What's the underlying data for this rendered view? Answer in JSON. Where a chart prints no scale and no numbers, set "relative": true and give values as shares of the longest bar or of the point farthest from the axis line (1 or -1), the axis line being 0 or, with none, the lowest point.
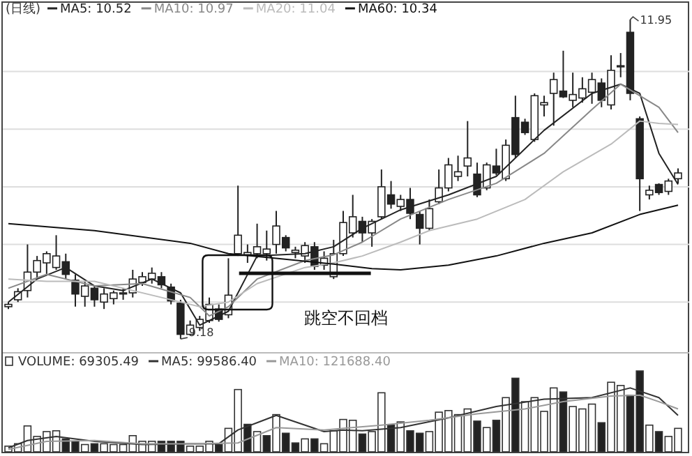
{
  "chart_data": [
    {
      "type": "candlestick",
      "title": "(日线)",
      "color": "#222222",
      "grid": "y",
      "legend": "top left",
      "categories": [
        null,
        null,
        null,
        null,
        null,
        null,
        null,
        null,
        null,
        null,
        null,
        null,
        null,
        null,
        null,
        null,
        null,
        null,
        null,
        null,
        null,
        null,
        null,
        null,
        null,
        null,
        null,
        null,
        null,
        null,
        null,
        null,
        null,
        null,
        null,
        null,
        null,
        null,
        null,
        null,
        null,
        null,
        null,
        null,
        null,
        null,
        null,
        null,
        null,
        null,
        null,
        null,
        null,
        null,
        null,
        null,
        null,
        null,
        null,
        null,
        null,
        null,
        null,
        null,
        null,
        null,
        null,
        null,
        null,
        null,
        null
      ],
      "ohlc": [
        [
          9.46,
          9.5,
          9.44,
          9.48
        ],
        [
          9.52,
          9.62,
          9.5,
          9.59
        ],
        [
          9.6,
          10.0,
          9.54,
          9.76
        ],
        [
          9.76,
          9.9,
          9.7,
          9.86
        ],
        [
          9.84,
          9.94,
          9.74,
          9.92
        ],
        [
          9.8,
          10.08,
          9.78,
          9.9
        ],
        [
          9.85,
          9.92,
          9.7,
          9.74
        ],
        [
          9.69,
          9.74,
          9.46,
          9.57
        ],
        [
          9.55,
          9.68,
          9.46,
          9.64
        ],
        [
          9.62,
          9.64,
          9.46,
          9.52
        ],
        [
          9.5,
          9.62,
          9.44,
          9.57
        ],
        [
          9.53,
          9.6,
          9.48,
          9.58
        ],
        [
          9.57,
          9.62,
          9.52,
          9.58
        ],
        [
          9.58,
          9.78,
          9.54,
          9.7
        ],
        [
          9.67,
          9.76,
          9.64,
          9.72
        ],
        [
          9.7,
          9.8,
          9.66,
          9.75
        ],
        [
          9.72,
          9.76,
          9.62,
          9.65
        ],
        [
          9.63,
          9.66,
          9.48,
          9.51
        ],
        [
          9.49,
          9.52,
          9.18,
          9.22
        ],
        [
          9.22,
          9.34,
          9.21,
          9.3
        ],
        [
          9.28,
          9.38,
          9.25,
          9.35
        ],
        [
          9.34,
          9.54,
          9.32,
          9.48
        ],
        [
          9.44,
          9.48,
          9.33,
          9.35
        ],
        [
          9.39,
          9.88,
          9.36,
          9.56
        ],
        [
          9.92,
          10.51,
          9.9,
          10.08
        ],
        [
          9.91,
          10.0,
          9.84,
          9.93
        ],
        [
          9.92,
          10.18,
          9.88,
          9.98
        ],
        [
          9.92,
          10.12,
          9.86,
          9.96
        ],
        [
          10.0,
          10.29,
          9.92,
          10.16
        ],
        [
          10.06,
          10.08,
          9.94,
          9.97
        ],
        [
          9.93,
          9.98,
          9.88,
          9.95
        ],
        [
          9.9,
          10.02,
          9.84,
          9.99
        ],
        [
          9.98,
          10.02,
          9.78,
          9.81
        ],
        [
          9.82,
          9.94,
          9.78,
          9.88
        ],
        [
          9.72,
          10.04,
          9.7,
          9.92
        ],
        [
          9.92,
          10.29,
          9.9,
          10.19
        ],
        [
          10.1,
          10.43,
          10.06,
          10.24
        ],
        [
          10.2,
          10.24,
          10.02,
          10.1
        ],
        [
          10.1,
          10.22,
          9.98,
          10.2
        ],
        [
          10.24,
          10.65,
          10.22,
          10.5
        ],
        [
          10.43,
          10.55,
          10.31,
          10.35
        ],
        [
          10.33,
          10.43,
          10.29,
          10.39
        ],
        [
          10.39,
          10.49,
          10.22,
          10.27
        ],
        [
          10.26,
          10.29,
          10.0,
          10.14
        ],
        [
          10.14,
          10.39,
          10.12,
          10.31
        ],
        [
          10.37,
          10.65,
          10.35,
          10.49
        ],
        [
          10.49,
          10.75,
          10.46,
          10.69
        ],
        [
          10.59,
          10.77,
          10.55,
          10.63
        ],
        [
          10.68,
          11.07,
          10.59,
          10.75
        ],
        [
          10.61,
          10.71,
          10.41,
          10.43
        ],
        [
          10.49,
          10.71,
          10.47,
          10.69
        ],
        [
          10.68,
          10.83,
          10.6,
          10.62
        ],
        [
          10.57,
          10.91,
          10.55,
          10.86
        ],
        [
          11.1,
          11.29,
          10.75,
          10.78
        ],
        [
          11.06,
          11.09,
          10.95,
          10.97
        ],
        [
          10.91,
          11.31,
          10.89,
          11.29
        ],
        [
          11.21,
          11.29,
          11.11,
          11.23
        ],
        [
          11.31,
          11.49,
          11.03,
          11.43
        ],
        [
          11.33,
          11.68,
          11.27,
          11.28
        ],
        [
          11.25,
          11.49,
          11.19,
          11.3
        ],
        [
          11.27,
          11.45,
          11.23,
          11.35
        ],
        [
          11.32,
          11.49,
          11.22,
          11.43
        ],
        [
          11.4,
          11.44,
          11.19,
          11.25
        ],
        [
          11.21,
          11.64,
          11.17,
          11.51
        ],
        [
          11.54,
          11.66,
          11.45,
          11.55
        ],
        [
          11.84,
          11.95,
          11.25,
          11.31
        ],
        [
          11.09,
          11.11,
          10.29,
          10.57
        ],
        [
          10.43,
          10.51,
          10.39,
          10.47
        ],
        [
          10.52,
          10.53,
          10.43,
          10.45
        ],
        [
          10.46,
          10.57,
          10.43,
          10.55
        ],
        [
          10.57,
          10.66,
          10.53,
          10.62
        ]
      ],
      "series": [
        {
          "name": "MA5: 10.52",
          "type": "line",
          "color": "#222222",
          "values": [
            9.5,
            null,
            null,
            9.7,
            null,
            null,
            9.8,
            null,
            null,
            9.64,
            null,
            null,
            9.6,
            null,
            null,
            9.7,
            null,
            null,
            9.58,
            null,
            9.3,
            null,
            null,
            9.42,
            null,
            null,
            9.9,
            null,
            null,
            null,
            null,
            9.92,
            null,
            null,
            9.98,
            null,
            null,
            10.14,
            null,
            null,
            null,
            10.3,
            null,
            null,
            null,
            null,
            10.43,
            null,
            null,
            null,
            null,
            10.59,
            null,
            null,
            null,
            null,
            10.99,
            null,
            null,
            null,
            null,
            11.31,
            null,
            null,
            11.39,
            null,
            11.31,
            null,
            10.79,
            null,
            10.52
          ]
        },
        {
          "name": "MA10: 10.97",
          "type": "line",
          "color": "#888888",
          "values": [
            9.62,
            null,
            null,
            null,
            9.74,
            null,
            null,
            null,
            null,
            9.64,
            null,
            null,
            null,
            null,
            9.66,
            null,
            null,
            null,
            null,
            9.54,
            null,
            9.38,
            null,
            9.46,
            null,
            null,
            9.7,
            null,
            null,
            null,
            null,
            9.86,
            null,
            null,
            9.91,
            null,
            null,
            10.02,
            null,
            null,
            null,
            10.22,
            null,
            null,
            null,
            null,
            10.39,
            null,
            null,
            null,
            null,
            10.53,
            null,
            null,
            null,
            null,
            10.79,
            null,
            null,
            null,
            null,
            11.17,
            null,
            null,
            11.39,
            null,
            null,
            null,
            11.19,
            null,
            10.97
          ]
        },
        {
          "name": "MA20: 11.04",
          "type": "line",
          "color": "#bbbbbb",
          "values": [
            9.7,
            null,
            null,
            null,
            9.68,
            null,
            null,
            null,
            null,
            9.68,
            null,
            null,
            null,
            null,
            null,
            null,
            9.54,
            null,
            null,
            null,
            9.46,
            null,
            null,
            9.5,
            null,
            null,
            9.66,
            null,
            null,
            null,
            null,
            9.8,
            null,
            null,
            9.84,
            null,
            null,
            9.9,
            null,
            null,
            null,
            10.02,
            null,
            null,
            10.12,
            null,
            null,
            null,
            null,
            10.22,
            null,
            null,
            null,
            null,
            10.39,
            null,
            null,
            null,
            10.63,
            null,
            null,
            null,
            null,
            10.87,
            null,
            null,
            11.07,
            null,
            11.05,
            null,
            11.04
          ]
        },
        {
          "name": "MA60: 10.34",
          "type": "line",
          "color": "#111111",
          "values": [
            10.18,
            null,
            null,
            null,
            null,
            null,
            null,
            null,
            null,
            10.12,
            null,
            null,
            null,
            null,
            null,
            null,
            null,
            null,
            null,
            10.01,
            null,
            null,
            null,
            9.92,
            null,
            null,
            null,
            null,
            9.88,
            null,
            null,
            null,
            null,
            null,
            9.83,
            null,
            null,
            null,
            9.79,
            null,
            null,
            9.78,
            null,
            null,
            null,
            null,
            9.82,
            null,
            null,
            null,
            null,
            9.9,
            null,
            null,
            null,
            null,
            10.01,
            null,
            null,
            null,
            null,
            10.1,
            null,
            null,
            null,
            null,
            10.26,
            null,
            null,
            null,
            10.34
          ]
        }
      ],
      "ylim": [
        9.06,
        12.12
      ],
      "yticks": [
        {
          "value": 9.5,
          "label": null
        },
        {
          "value": 10.0,
          "label": null
        },
        {
          "value": 10.5,
          "label": null
        },
        {
          "value": 11.0,
          "label": null
        },
        {
          "value": 11.5,
          "label": null
        }
      ],
      "annotations": [
        "11.95",
        "9.18",
        "跳空不回档"
      ]
    },
    {
      "type": "bar",
      "relative": true,
      "legend": "top left",
      "categories": [
        null,
        null,
        null,
        null,
        null,
        null,
        null,
        null,
        null,
        null,
        null,
        null,
        null,
        null,
        null,
        null,
        null,
        null,
        null,
        null,
        null,
        null,
        null,
        null,
        null,
        null,
        null,
        null,
        null,
        null,
        null,
        null,
        null,
        null,
        null,
        null,
        null,
        null,
        null,
        null,
        null,
        null,
        null,
        null,
        null,
        null,
        null,
        null,
        null,
        null,
        null,
        null,
        null,
        null,
        null,
        null,
        null,
        null,
        null,
        null,
        null,
        null,
        null,
        null,
        null,
        null,
        null,
        null,
        null,
        null,
        null
      ],
      "series": [
        {
          "name": "VOLUME: 69305.49",
          "type": "bar",
          "values": [
            0.07,
            0.1,
            0.32,
            0.19,
            0.25,
            0.26,
            0.16,
            0.13,
            0.09,
            0.1,
            0.1,
            0.09,
            0.09,
            0.2,
            0.13,
            0.13,
            0.13,
            0.13,
            0.13,
            0.07,
            0.07,
            0.13,
            0.09,
            0.29,
            0.77,
            0.34,
            0.25,
            0.2,
            0.46,
            0.23,
            0.11,
            0.16,
            0.16,
            0.1,
            0.26,
            0.4,
            0.39,
            0.22,
            0.25,
            0.73,
            0.33,
            0.37,
            0.26,
            0.23,
            0.25,
            0.49,
            0.51,
            0.46,
            0.53,
            0.38,
            0.3,
            0.39,
            0.67,
            0.91,
            0.62,
            0.67,
            0.5,
            0.79,
            0.74,
            0.56,
            0.53,
            0.59,
            0.36,
            0.86,
            0.82,
            0.7,
            1,
            0.33,
            0.25,
            0.19,
            0.29
          ],
          "colors": [
            "#ffffff",
            "#ffffff",
            "#ffffff",
            "#ffffff",
            "#ffffff",
            "#ffffff",
            "#222222",
            "#222222",
            "#ffffff",
            "#222222",
            "#ffffff",
            "#ffffff",
            "#ffffff",
            "#ffffff",
            "#ffffff",
            "#ffffff",
            "#222222",
            "#222222",
            "#222222",
            "#ffffff",
            "#ffffff",
            "#ffffff",
            "#222222",
            "#ffffff",
            "#ffffff",
            "#222222",
            "#ffffff",
            "#222222",
            "#ffffff",
            "#222222",
            "#222222",
            "#ffffff",
            "#222222",
            "#ffffff",
            "#ffffff",
            "#ffffff",
            "#ffffff",
            "#222222",
            "#ffffff",
            "#ffffff",
            "#222222",
            "#ffffff",
            "#222222",
            "#222222",
            "#ffffff",
            "#ffffff",
            "#ffffff",
            "#ffffff",
            "#ffffff",
            "#222222",
            "#ffffff",
            "#222222",
            "#ffffff",
            "#222222",
            "#ffffff",
            "#ffffff",
            "#ffffff",
            "#ffffff",
            "#222222",
            "#ffffff",
            "#ffffff",
            "#ffffff",
            "#222222",
            "#ffffff",
            "#ffffff",
            "#222222",
            "#222222",
            "#ffffff",
            "#222222",
            "#ffffff",
            "#ffffff"
          ]
        },
        {
          "name": "MA5: 99586.40",
          "type": "line",
          "color": "#333333",
          "values": [
            0.05,
            null,
            0.14,
            null,
            null,
            0.19,
            null,
            null,
            null,
            0.13,
            null,
            null,
            null,
            null,
            0.09,
            null,
            null,
            null,
            null,
            0.1,
            null,
            null,
            0.1,
            null,
            0.27,
            null,
            0.36,
            null,
            0.45,
            null,
            null,
            null,
            null,
            0.25,
            null,
            0.27,
            null,
            0.26,
            null,
            null,
            null,
            0.3,
            null,
            null,
            null,
            null,
            0.42,
            null,
            null,
            null,
            null,
            0.56,
            null,
            null,
            null,
            null,
            0.65,
            null,
            null,
            null,
            null,
            0.67,
            null,
            null,
            null,
            0.79,
            null,
            null,
            0.67,
            null,
            0.45
          ]
        },
        {
          "name": "MA10: 121688.40",
          "type": "line",
          "color": "#999999",
          "values": [
            0.03,
            null,
            null,
            null,
            0.13,
            null,
            null,
            null,
            null,
            0.14,
            null,
            null,
            null,
            null,
            0.1,
            null,
            null,
            null,
            null,
            0.1,
            null,
            null,
            null,
            null,
            0.11,
            null,
            null,
            null,
            0.3,
            null,
            null,
            null,
            null,
            0.27,
            null,
            null,
            null,
            null,
            null,
            0.33,
            null,
            null,
            null,
            null,
            0.39,
            null,
            null,
            null,
            null,
            0.47,
            null,
            null,
            null,
            null,
            0.53,
            null,
            null,
            null,
            0.62,
            null,
            null,
            null,
            null,
            0.69,
            null,
            null,
            0.7,
            null,
            0.62,
            null,
            0.53
          ]
        }
      ]
    }
  ]
}
